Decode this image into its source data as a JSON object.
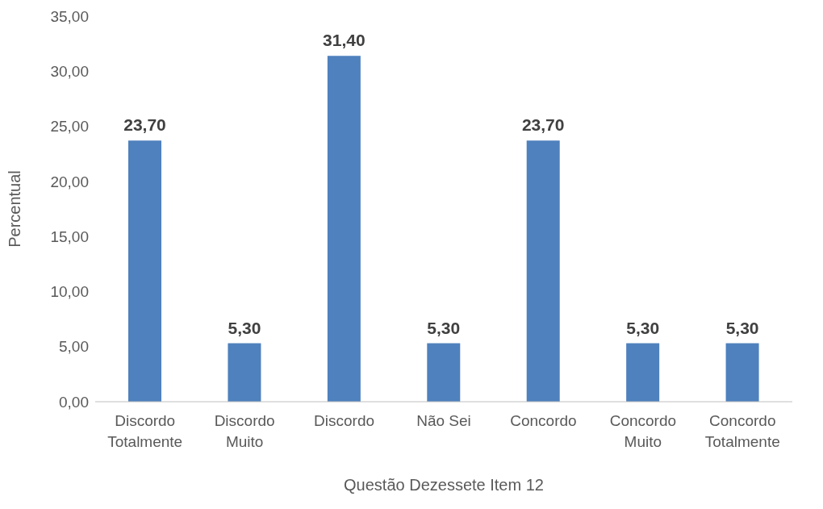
{
  "chart_data": {
    "type": "bar",
    "xlabel": "Questão Dezessete Item 12",
    "ylabel": "Percentual",
    "categories": [
      "Discordo Totalmente",
      "Discordo Muito",
      "Discordo",
      "Não Sei",
      "Concordo",
      "Concordo Muito",
      "Concordo Totalmente"
    ],
    "values": [
      23.7,
      5.3,
      31.4,
      5.3,
      23.7,
      5.3,
      5.3
    ],
    "value_labels": [
      "23,70",
      "5,30",
      "31,40",
      "5,30",
      "23,70",
      "5,30",
      "5,30"
    ],
    "color": "#4e81bd",
    "ylim": [
      0,
      35
    ],
    "yticks": [
      {
        "value": 0,
        "label": "0,00"
      },
      {
        "value": 5,
        "label": "5,00"
      },
      {
        "value": 10,
        "label": "10,00"
      },
      {
        "value": 15,
        "label": "15,00"
      },
      {
        "value": 20,
        "label": "20,00"
      },
      {
        "value": 25,
        "label": "25,00"
      },
      {
        "value": 30,
        "label": "30,00"
      },
      {
        "value": 35,
        "label": "35,00"
      }
    ],
    "grid": false
  }
}
